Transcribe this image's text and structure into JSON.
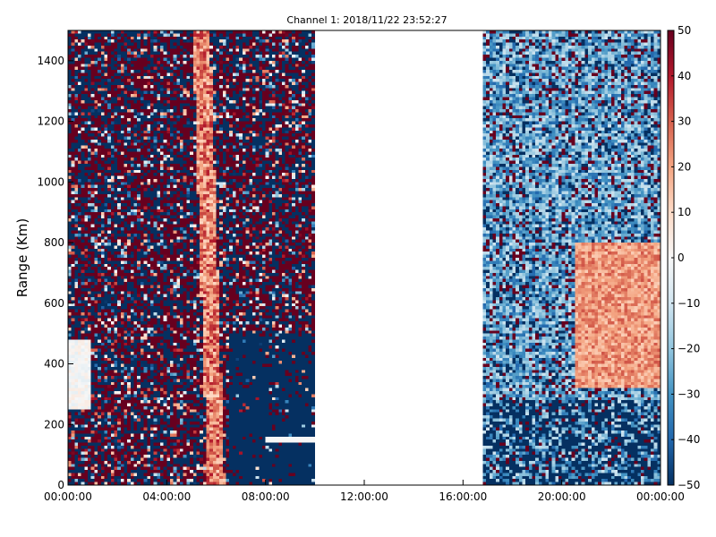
{
  "chart_data": {
    "type": "heatmap",
    "title": "Channel 1: 2018/11/22 23:52:27",
    "xlabel": "",
    "ylabel": "Range (Km)",
    "x_ticks": [
      "00:00:00",
      "04:00:00",
      "08:00:00",
      "12:00:00",
      "16:00:00",
      "20:00:00",
      "00:00:00"
    ],
    "x_range_hours": [
      0,
      24
    ],
    "y_ticks": [
      0,
      200,
      400,
      600,
      800,
      1000,
      1200,
      1400
    ],
    "ylim": [
      0,
      1500
    ],
    "colorbar": {
      "range": [
        -50,
        50
      ],
      "ticks": [
        50,
        40,
        30,
        20,
        10,
        0,
        -10,
        -20,
        -30,
        -40,
        -50
      ],
      "colormap": "RdBu_r"
    },
    "data_gap_hours": [
      10.0,
      16.8
    ],
    "colors": {
      "min": "#053061",
      "mid": "#f7f7f7",
      "max": "#67001f"
    }
  }
}
